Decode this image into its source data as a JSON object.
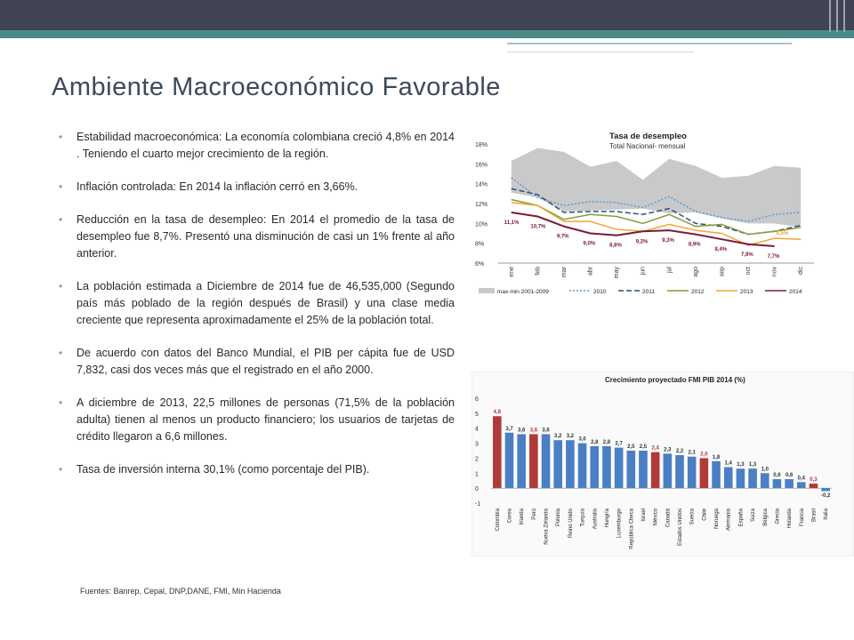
{
  "slide": {
    "title": "Ambiente Macroeconómico Favorable",
    "bullets": [
      "Estabilidad macroeconómica: La economía colombiana creció 4,8% en 2014 . Teniendo el cuarto mejor crecimiento de la región.",
      "Inflación controlada: En 2014 la inflación cerró en 3,66%.",
      "Reducción en la tasa de desempleo: En 2014 el promedio de la tasa de desempleo fue 8,7%.  Presentó una disminución de casi un 1% frente al año anterior.",
      "La población estimada  a Diciembre de 2014 fue de 46,535,000 (Segundo país más poblado de la región después de Brasil) y una clase media creciente que representa aproximadamente el 25% de la población total.",
      "De acuerdo con datos del Banco Mundial, el PIB per cápita  fue de USD 7,832, casi dos veces más que el registrado en el año 2000.",
      "A diciembre de 2013, 22,5 millones de personas (71,5% de la población adulta) tienen al menos un producto financiero; los usuarios de tarjetas de crédito llegaron  a 6,6 millones.",
      "Tasa de inversión interna  30,1% (como porcentaje del PIB)."
    ],
    "bullet_glyph": "•",
    "sources": "Fuentes: Banrep, Cepal, DNP,DANE, FMI, Min Hacienda",
    "colors": {
      "topbar": "#3f4353",
      "accent": "#4a8a86",
      "title": "#3c4a5c"
    }
  },
  "chart_data": [
    {
      "type": "line",
      "title": "Tasa de desempleo",
      "subtitle": "Total Nacional- mensual",
      "categories": [
        "ene",
        "feb",
        "mar",
        "abr",
        "may",
        "jun",
        "jul",
        "ago",
        "sep",
        "oct",
        "nov",
        "dic"
      ],
      "y_ticks": [
        "18%",
        "16%",
        "14%",
        "12%",
        "10%",
        "8%",
        "6%"
      ],
      "ylim": [
        6,
        18
      ],
      "band": {
        "name": "max-min 2001-2009",
        "color": "#c9c9c9",
        "max": [
          16.3,
          17.6,
          17.2,
          15.7,
          16.3,
          14.4,
          16.5,
          15.8,
          14.6,
          14.8,
          15.8,
          15.6
        ],
        "min": [
          13.1,
          12.6,
          11.2,
          11.3,
          11.4,
          11.5,
          11.0,
          11.1,
          10.5,
          10.0,
          10.0,
          9.6
        ]
      },
      "series": [
        {
          "name": "2010",
          "color": "#5b9bd5",
          "dash": "2,2",
          "values": [
            14.6,
            12.6,
            11.8,
            12.2,
            12.1,
            11.6,
            12.7,
            11.2,
            10.6,
            10.2,
            10.9,
            11.1
          ]
        },
        {
          "name": "2011",
          "color": "#2e4f7a",
          "dash": "6,3",
          "values": [
            13.5,
            12.9,
            11.1,
            11.2,
            11.2,
            10.9,
            11.5,
            10.0,
            9.7,
            8.9,
            9.2,
            9.8
          ]
        },
        {
          "name": "2012",
          "color": "#8a9a3b",
          "dash": "",
          "values": [
            12.4,
            11.8,
            10.4,
            10.9,
            10.7,
            10.0,
            10.9,
            9.7,
            9.9,
            8.9,
            9.2,
            9.6
          ]
        },
        {
          "name": "2013",
          "color": "#f0a830",
          "dash": "",
          "values": [
            12.1,
            11.8,
            10.2,
            10.2,
            9.4,
            9.2,
            9.9,
            9.3,
            9.0,
            7.8,
            8.5,
            8.4
          ]
        },
        {
          "name": "2014",
          "color": "#7b1a3a",
          "dash": "",
          "values": [
            11.1,
            10.7,
            9.7,
            9.0,
            8.8,
            9.2,
            9.3,
            8.9,
            8.4,
            7.9,
            7.7,
            null
          ]
        }
      ],
      "annotations": [
        {
          "x": "ene",
          "label": "11,1%"
        },
        {
          "x": "feb",
          "label": "10,7%"
        },
        {
          "x": "mar",
          "label": "9,7%"
        },
        {
          "x": "abr",
          "label": "9,0%"
        },
        {
          "x": "may",
          "label": "8,8%"
        },
        {
          "x": "jun",
          "label": "9,2%"
        },
        {
          "x": "jul",
          "label": "9,3%"
        },
        {
          "x": "ago",
          "label": "8,9%"
        },
        {
          "x": "sep",
          "label": "8,4%"
        },
        {
          "x": "oct",
          "label": "7,9%"
        },
        {
          "x": "nov",
          "label": "7,7%"
        },
        {
          "x": "nov",
          "label": "8,5%"
        }
      ]
    },
    {
      "type": "bar",
      "title": "Crecimiento proyectado FMI PIB 2014 (%)",
      "categories": [
        "Colombia",
        "Corea",
        "Irlanda",
        "Perú",
        "Nueva Zelanda",
        "Polonia",
        "Reino Unido",
        "Turquía",
        "Australia",
        "Hungría",
        "Luxemburgo",
        "República Checa",
        "Israel",
        "México",
        "Canadá",
        "Estados Unidos",
        "Suecia",
        "Chile",
        "Noruega",
        "Alemania",
        "España",
        "Suiza",
        "Bélgica",
        "Grecia",
        "Holanda",
        "Francia",
        "Brasil",
        "Italia"
      ],
      "values": [
        4.8,
        3.7,
        3.6,
        3.6,
        3.6,
        3.2,
        3.2,
        3.0,
        2.8,
        2.8,
        2.7,
        2.5,
        2.5,
        2.4,
        2.3,
        2.2,
        2.1,
        2.0,
        1.8,
        1.4,
        1.3,
        1.3,
        1.0,
        0.6,
        0.6,
        0.4,
        0.3,
        -0.2
      ],
      "labels": [
        "4,8",
        "3,7",
        "3,6",
        "3,6",
        "3,6",
        "3,2",
        "3,2",
        "3,0",
        "2,8",
        "2,8",
        "2,7",
        "2,5",
        "2,5",
        "2,4",
        "2,3",
        "2,2",
        "2,1",
        "2,0",
        "1,8",
        "1,4",
        "1,3",
        "1,3",
        "1,0",
        "0,6",
        "0,6",
        "0,4",
        "0,3",
        "-0,2"
      ],
      "highlight": [
        "Colombia",
        "Perú",
        "México",
        "Chile",
        "Brasil"
      ],
      "colors": {
        "default": "#4a7fc4",
        "highlight": "#b03a3a"
      },
      "y_ticks": [
        "6",
        "5",
        "4",
        "3",
        "2",
        "1",
        "0",
        "-1"
      ],
      "ylim": [
        -1,
        6
      ]
    }
  ]
}
